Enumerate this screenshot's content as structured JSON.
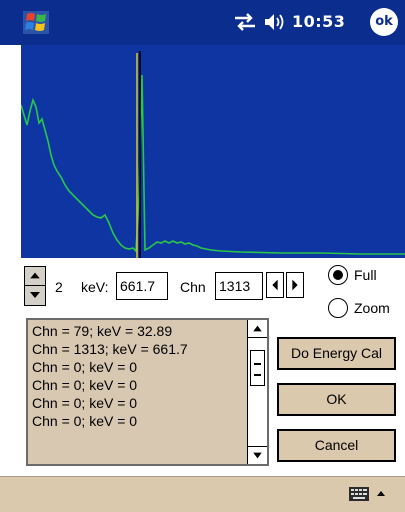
{
  "titlebar": {
    "time": "10:53",
    "ok_label": "ok",
    "icons": [
      "windows-logo-icon",
      "connectivity-icon",
      "volume-icon"
    ]
  },
  "controls": {
    "spin_value": "2",
    "kev_label": "keV:",
    "kev_value": "661.7",
    "chn_label": "Chn",
    "chn_value": "1313",
    "radio_full": "Full",
    "radio_zoom": "Zoom",
    "selected_radio": "Full"
  },
  "list": {
    "lines": [
      "Chn = 79; keV = 32.89",
      "Chn = 1313; keV = 661.7",
      "Chn = 0; keV = 0",
      "Chn = 0; keV = 0",
      "Chn = 0; keV = 0",
      "Chn = 0; keV = 0"
    ]
  },
  "buttons": {
    "energy_cal": "Do Energy Cal",
    "ok": "OK",
    "cancel": "Cancel"
  },
  "colors": {
    "titlebar": "#0a2d8e",
    "plot_bg": "#0f35a3",
    "spectrum_line": "#27c84a",
    "peak_line": "#c9c236",
    "cursor_line": "#000000",
    "panel": "#dbc9ad"
  },
  "menubar": {
    "icons": [
      "keyboard-icon",
      "chevron-up-icon"
    ]
  }
}
